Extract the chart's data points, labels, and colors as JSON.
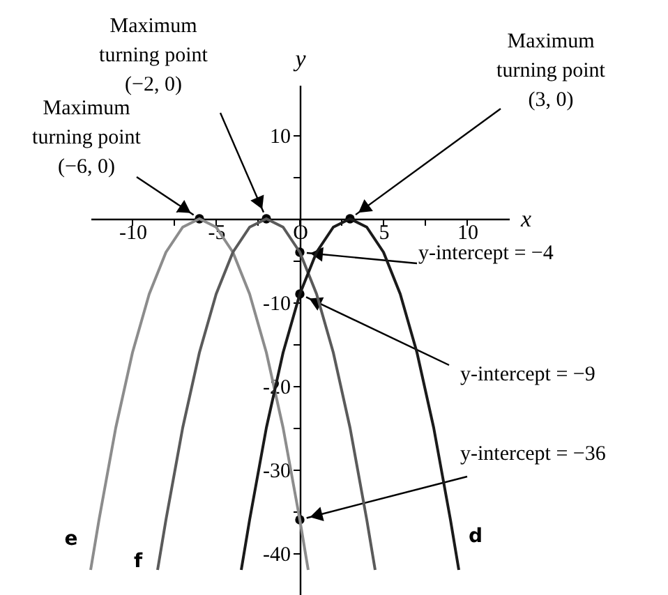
{
  "chart_data": {
    "type": "line",
    "xlabel": "x",
    "ylabel": "y",
    "xlim": [
      -12.5,
      12.5
    ],
    "ylim": [
      -45,
      16
    ],
    "xticks": [
      -10,
      {
        "value": -7.5,
        "label": null
      },
      -5,
      {
        "value": -2.5,
        "label": null
      },
      {
        "value": 0,
        "label": "O"
      },
      {
        "value": 2.5,
        "label": null
      },
      5,
      {
        "value": 7.5,
        "label": null
      },
      10
    ],
    "yticks": [
      10,
      {
        "value": 5,
        "label": null
      },
      {
        "value": -5,
        "label": null
      },
      -10,
      {
        "value": -15,
        "label": null
      },
      -20,
      {
        "value": -25,
        "label": null
      },
      -30,
      {
        "value": -35,
        "label": null
      },
      -40
    ],
    "grid": false,
    "series": [
      {
        "name": "e",
        "color": "#8c8c8c",
        "x": [
          -12.5,
          -12,
          -11,
          -10,
          -9,
          -8,
          -7,
          -6,
          -5,
          -4,
          -3,
          -2,
          -1,
          0,
          0.5
        ],
        "values": [
          -42,
          -36,
          -25,
          -16,
          -9,
          -4,
          -1,
          0,
          -1,
          -4,
          -9,
          -16,
          -25,
          -36,
          -42
        ]
      },
      {
        "name": "f",
        "color": "#5a5a5a",
        "x": [
          -8.5,
          -8,
          -7,
          -6,
          -5,
          -4,
          -3,
          -2,
          -1,
          0,
          1,
          2,
          3,
          4,
          4.5
        ],
        "values": [
          -42,
          -36,
          -25,
          -16,
          -9,
          -4,
          -1,
          0,
          -1,
          -4,
          -9,
          -16,
          -25,
          -36,
          -42
        ]
      },
      {
        "name": "d",
        "color": "#1a1a1a",
        "x": [
          -3.5,
          -3,
          -2,
          -1,
          0,
          1,
          2,
          3,
          4,
          5,
          6,
          7,
          8,
          9,
          9.5
        ],
        "values": [
          -42,
          -36,
          -25,
          -16,
          -9,
          -4,
          -1,
          0,
          -1,
          -4,
          -9,
          -16,
          -25,
          -36,
          -42
        ]
      }
    ],
    "annotations": [
      {
        "text": "Maximum\nturning point\n(−6, 0)",
        "x": -6,
        "y": 0
      },
      {
        "text": "Maximum\nturning point\n(−2, 0)",
        "x": -2,
        "y": 0
      },
      {
        "text": "Maximum\nturning point\n(3, 0)",
        "x": 3,
        "y": 0
      },
      {
        "text": "y-intercept = −4",
        "x": 0,
        "y": -4
      },
      {
        "text": "y-intercept = −9",
        "x": 0,
        "y": -9
      },
      {
        "text": "y-intercept = −36",
        "x": 0,
        "y": -36
      }
    ]
  }
}
